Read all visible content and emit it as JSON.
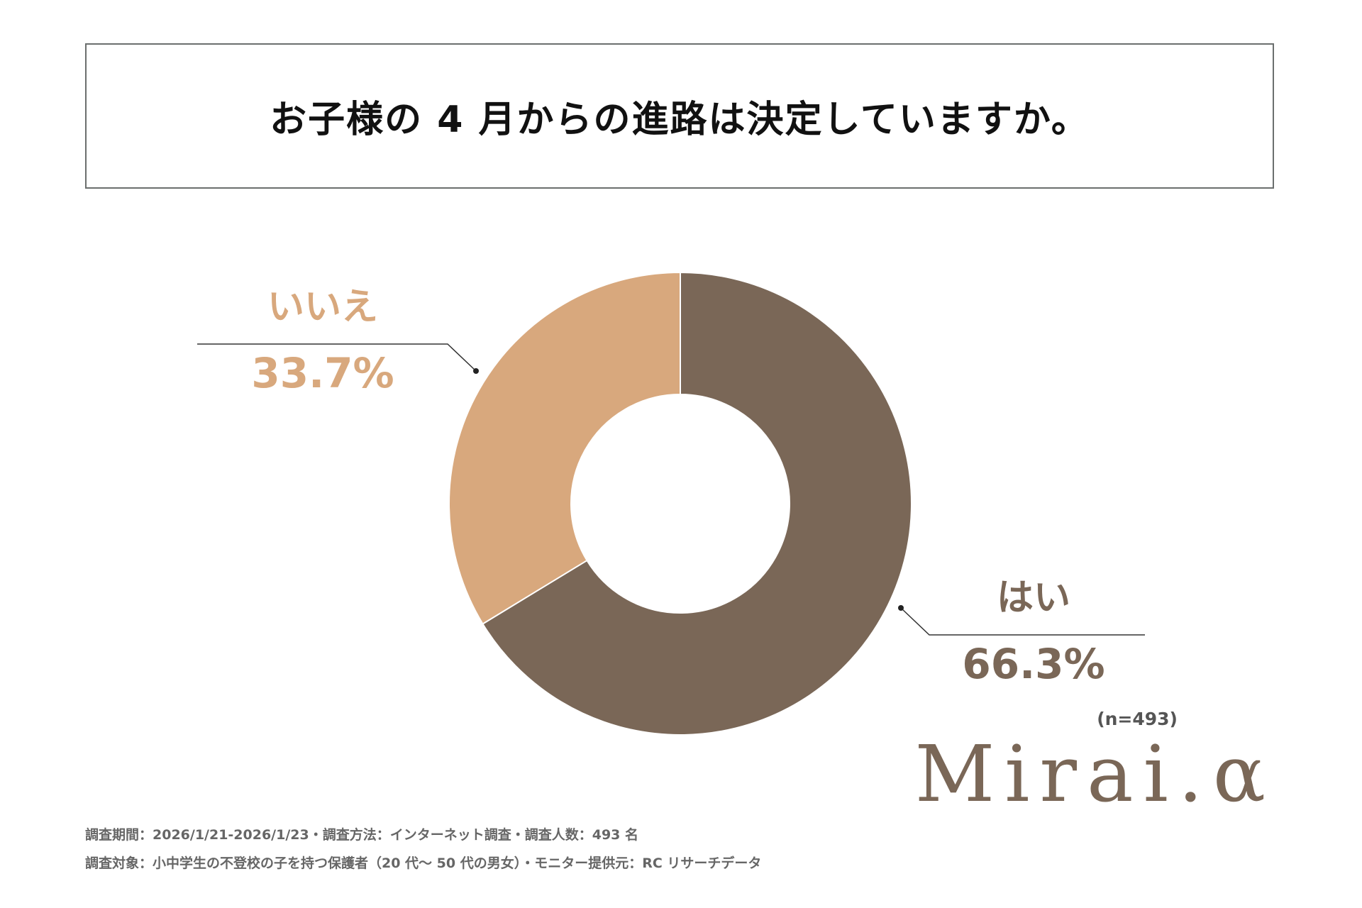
{
  "chart_data": {
    "type": "pie",
    "title": "お子様の 4 月からの進路は決定していますか。",
    "categories": [
      "はい",
      "いいえ"
    ],
    "values": [
      66.3,
      33.7
    ],
    "value_labels": [
      "66.3%",
      "33.7%"
    ],
    "colors": [
      "#7a6757",
      "#d8a87d"
    ],
    "donut": true,
    "sample_size": "(n=493)"
  },
  "footer": {
    "line1": "調査期間：2026/1/21-2026/1/23・調査方法：インターネット調査・調査人数：493 名",
    "line2": "調査対象：小中学生の不登校の子を持つ保護者（20 代～ 50 代の男女）・モニター提供元：RC リサーチデータ"
  },
  "logo": "Mirai.α"
}
